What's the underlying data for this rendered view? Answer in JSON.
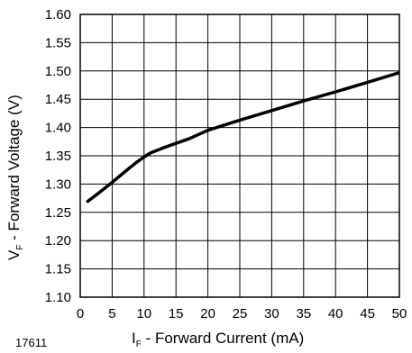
{
  "figure_number": "17611",
  "chart_data": {
    "type": "line",
    "title": "",
    "xlabel": {
      "symbol": "I",
      "subscript": "F",
      "text": " - Forward Current (mA)"
    },
    "ylabel": {
      "symbol": "V",
      "subscript": "F",
      "text": " - Forward Voltage (V)"
    },
    "xlim": [
      0,
      50
    ],
    "ylim": [
      1.1,
      1.6
    ],
    "x_ticks": [
      0,
      5,
      10,
      15,
      20,
      25,
      30,
      35,
      40,
      45,
      50
    ],
    "x_tick_labels": [
      "0",
      "5",
      "10",
      "15",
      "20",
      "25",
      "30",
      "35",
      "40",
      "45",
      "50"
    ],
    "y_ticks": [
      1.1,
      1.15,
      1.2,
      1.25,
      1.3,
      1.35,
      1.4,
      1.45,
      1.5,
      1.55,
      1.6
    ],
    "y_tick_labels": [
      "1.10",
      "1.15",
      "1.20",
      "1.25",
      "1.30",
      "1.35",
      "1.40",
      "1.45",
      "1.50",
      "1.55",
      "1.60"
    ],
    "grid": true,
    "series": [
      {
        "x": [
          1,
          3,
          5,
          7,
          9,
          10,
          11,
          13,
          15,
          17,
          20,
          25,
          30,
          35,
          40,
          45,
          50
        ],
        "y": [
          1.268,
          1.285,
          1.303,
          1.322,
          1.34,
          1.348,
          1.355,
          1.364,
          1.372,
          1.38,
          1.395,
          1.413,
          1.43,
          1.447,
          1.463,
          1.48,
          1.497
        ],
        "color": "#000000"
      }
    ]
  }
}
